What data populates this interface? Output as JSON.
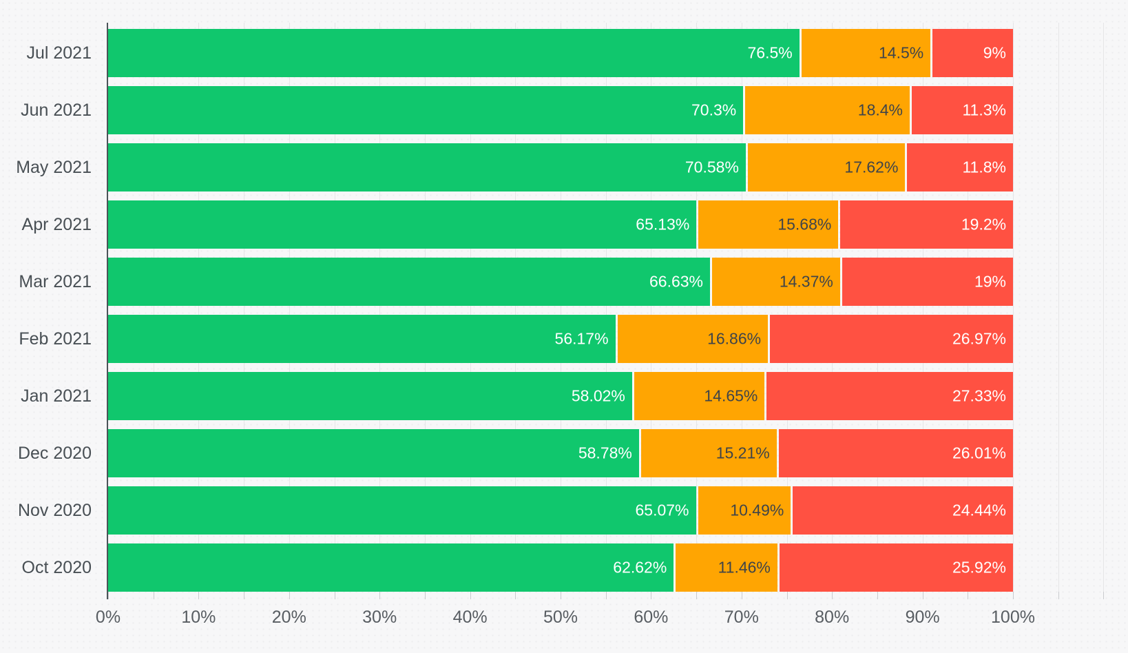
{
  "colors": {
    "background": "#f7f7f8",
    "axis_line": "#4b5358",
    "gridline": "#e5e5e7",
    "y_label_text": "#484f54",
    "x_label_text": "#585d62",
    "green": "#10c76d",
    "orange": "#ffa502",
    "red": "#ff5142",
    "label_on_green": "#ffffff",
    "label_on_orange": "#3f4449",
    "label_on_red": "#ffffff"
  },
  "chart_data": {
    "type": "bar",
    "orientation": "horizontal",
    "stacked": true,
    "title": "",
    "xlabel": "",
    "ylabel": "",
    "legend": "none",
    "grid": "vertical minor lines every 5%",
    "xlim": [
      0,
      100
    ],
    "x_ticks": [
      0,
      10,
      20,
      30,
      40,
      50,
      60,
      70,
      80,
      90,
      100
    ],
    "x_tick_labels": [
      "0%",
      "10%",
      "20%",
      "30%",
      "40%",
      "50%",
      "60%",
      "70%",
      "80%",
      "90%",
      "100%"
    ],
    "categories": [
      "Jul 2021",
      "Jun 2021",
      "May 2021",
      "Apr 2021",
      "Mar 2021",
      "Feb 2021",
      "Jan 2021",
      "Dec 2020",
      "Nov 2020",
      "Oct 2020"
    ],
    "series": [
      {
        "name": "green",
        "color": "#10c76d",
        "label_color": "#ffffff",
        "values": [
          76.5,
          70.3,
          70.58,
          65.13,
          66.63,
          56.17,
          58.02,
          58.78,
          65.07,
          62.62
        ],
        "labels": [
          "76.5%",
          "70.3%",
          "70.58%",
          "65.13%",
          "66.63%",
          "56.17%",
          "58.02%",
          "58.78%",
          "65.07%",
          "62.62%"
        ]
      },
      {
        "name": "orange",
        "color": "#ffa502",
        "label_color": "#3f4449",
        "values": [
          14.5,
          18.4,
          17.62,
          15.68,
          14.37,
          16.86,
          14.65,
          15.21,
          10.49,
          11.46
        ],
        "labels": [
          "14.5%",
          "18.4%",
          "17.62%",
          "15.68%",
          "14.37%",
          "16.86%",
          "14.65%",
          "15.21%",
          "10.49%",
          "11.46%"
        ]
      },
      {
        "name": "red",
        "color": "#ff5142",
        "label_color": "#ffffff",
        "values": [
          9,
          11.3,
          11.8,
          19.2,
          19,
          26.97,
          27.33,
          26.01,
          24.44,
          25.92
        ],
        "labels": [
          "9%",
          "11.3%",
          "11.8%",
          "19.2%",
          "19%",
          "26.97%",
          "27.33%",
          "26.01%",
          "24.44%",
          "25.92%"
        ]
      }
    ]
  }
}
